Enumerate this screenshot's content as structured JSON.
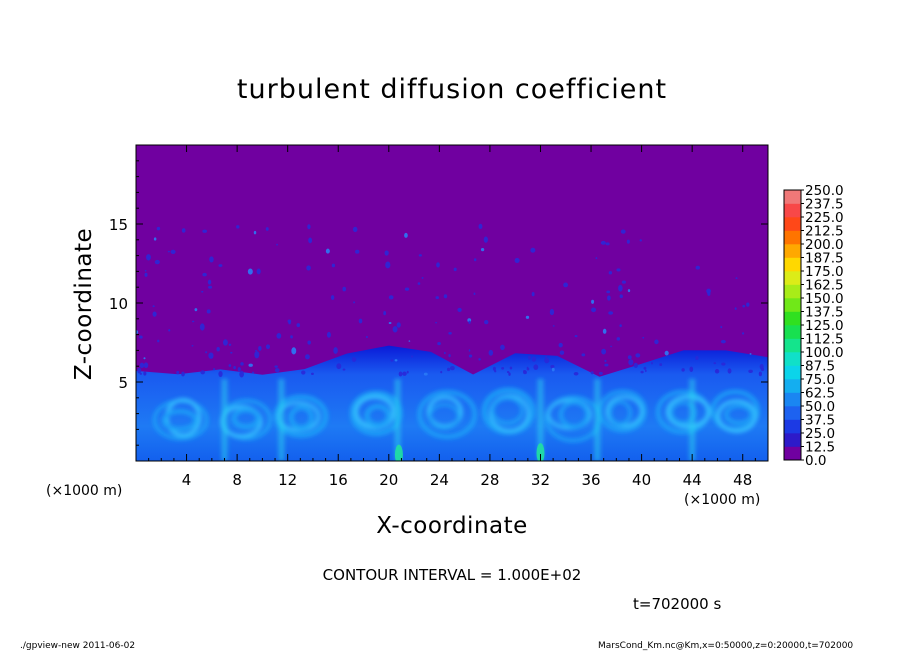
{
  "chart_data": {
    "type": "heatmap",
    "title": "turbulent diffusion coefficient",
    "xlabel": "X-coordinate",
    "ylabel": "Z-coordinate",
    "x_unit_label": "(×1000 m)",
    "x_range": [
      0,
      50
    ],
    "y_range": [
      0,
      20
    ],
    "x_ticks": [
      4,
      8,
      12,
      16,
      20,
      24,
      28,
      32,
      36,
      40,
      44,
      48
    ],
    "y_ticks": [
      5,
      10,
      15
    ],
    "colorbar": {
      "levels": [
        "0.0",
        "12.5",
        "25.0",
        "37.5",
        "50.0",
        "62.5",
        "75.0",
        "87.5",
        "100.0",
        "112.5",
        "125.0",
        "137.5",
        "150.0",
        "162.5",
        "175.0",
        "187.5",
        "200.0",
        "212.5",
        "225.0",
        "237.5",
        "250.0"
      ],
      "colors": [
        "#7000a0",
        "#2d1ac9",
        "#1c3ae4",
        "#1d62f0",
        "#1a86f2",
        "#14aef0",
        "#0bd4ea",
        "#10e0c8",
        "#14e48c",
        "#18e050",
        "#30e020",
        "#70e818",
        "#a8ec18",
        "#dcec18",
        "#ffd800",
        "#ffa800",
        "#ff7400",
        "#ff4818",
        "#f84848",
        "#f07878"
      ]
    },
    "boundary_layer_top_z": [
      5.7,
      5.5,
      5.7,
      5.4,
      5.8,
      6.8,
      7.2,
      7.0,
      5.5,
      6.8,
      6.6,
      5.4,
      6.2,
      6.9,
      7.0,
      6.5
    ],
    "background_value_range": [
      0.0,
      12.5
    ],
    "boundary_layer_value_range": [
      12.5,
      100.0
    ]
  },
  "contour_interval": "CONTOUR INTERVAL = 1.000E+02",
  "time_label": "t=702000 s",
  "footer_left": "./gpview-new   2011-06-02",
  "footer_right": "MarsCond_Km.nc@Km,x=0:50000,z=0:20000,t=702000",
  "colors": {
    "background": "#7000a0",
    "boundary_layer": "#1a5af0"
  }
}
